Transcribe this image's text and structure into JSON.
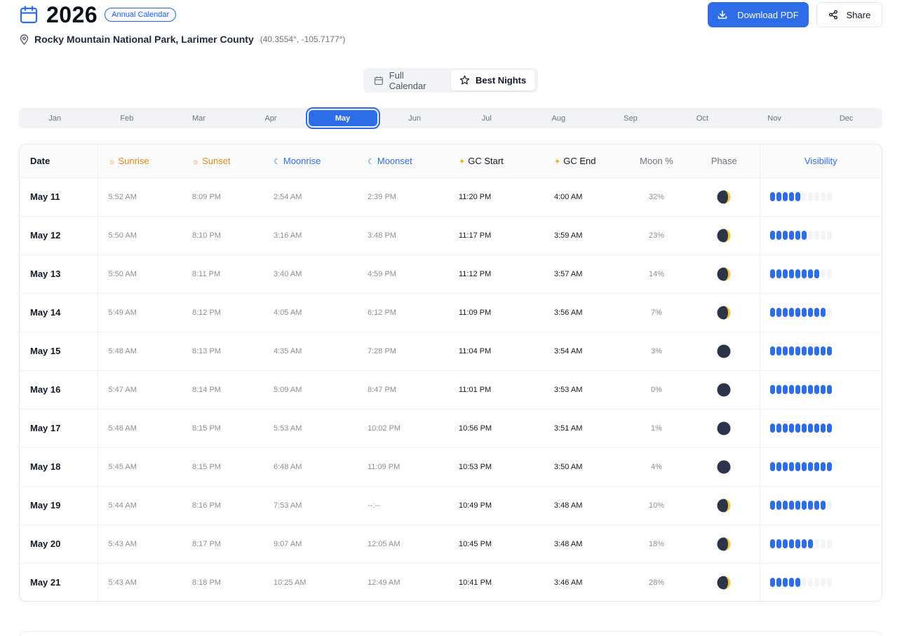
{
  "header": {
    "year": "2026",
    "badge": "Annual Calendar",
    "location_name": "Rocky Mountain National Park, Larimer County",
    "coordinates": "(40.3554°, -105.7177°)",
    "download_label": "Download PDF",
    "share_label": "Share"
  },
  "view_toggle": {
    "full_label": "Full Calendar",
    "best_label": "Best Nights",
    "active": "Best Nights"
  },
  "months": [
    "Jan",
    "Feb",
    "Mar",
    "Apr",
    "May",
    "Jun",
    "Jul",
    "Aug",
    "Sep",
    "Oct",
    "Nov",
    "Dec"
  ],
  "selected_month": "May",
  "table": {
    "headers": {
      "date": "Date",
      "sunrise": "Sunrise",
      "sunset": "Sunset",
      "moonrise": "Moonrise",
      "moonset": "Moonset",
      "gc_start": "GC Start",
      "gc_end": "GC End",
      "moon_pct": "Moon %",
      "phase": "Phase",
      "visibility": "Visibility"
    },
    "rows": [
      {
        "date": "May 11",
        "sunrise": "5:52 AM",
        "sunset": "8:09 PM",
        "moonrise": "2:54 AM",
        "moonset": "2:39 PM",
        "gc_start": "11:20 PM",
        "gc_end": "4:00 AM",
        "moon_pct": "32%",
        "phase": "crescent",
        "visibility": 5
      },
      {
        "date": "May 12",
        "sunrise": "5:50 AM",
        "sunset": "8:10 PM",
        "moonrise": "3:16 AM",
        "moonset": "3:48 PM",
        "gc_start": "11:17 PM",
        "gc_end": "3:59 AM",
        "moon_pct": "23%",
        "phase": "crescent",
        "visibility": 6
      },
      {
        "date": "May 13",
        "sunrise": "5:50 AM",
        "sunset": "8:11 PM",
        "moonrise": "3:40 AM",
        "moonset": "4:59 PM",
        "gc_start": "11:12 PM",
        "gc_end": "3:57 AM",
        "moon_pct": "14%",
        "phase": "crescent",
        "visibility": 8
      },
      {
        "date": "May 14",
        "sunrise": "5:49 AM",
        "sunset": "8:12 PM",
        "moonrise": "4:05 AM",
        "moonset": "6:12 PM",
        "gc_start": "11:09 PM",
        "gc_end": "3:56 AM",
        "moon_pct": "7%",
        "phase": "crescent",
        "visibility": 9
      },
      {
        "date": "May 15",
        "sunrise": "5:48 AM",
        "sunset": "8:13 PM",
        "moonrise": "4:35 AM",
        "moonset": "7:28 PM",
        "gc_start": "11:04 PM",
        "gc_end": "3:54 AM",
        "moon_pct": "3%",
        "phase": "new",
        "visibility": 10
      },
      {
        "date": "May 16",
        "sunrise": "5:47 AM",
        "sunset": "8:14 PM",
        "moonrise": "5:09 AM",
        "moonset": "8:47 PM",
        "gc_start": "11:01 PM",
        "gc_end": "3:53 AM",
        "moon_pct": "0%",
        "phase": "new",
        "visibility": 10
      },
      {
        "date": "May 17",
        "sunrise": "5:46 AM",
        "sunset": "8:15 PM",
        "moonrise": "5:53 AM",
        "moonset": "10:02 PM",
        "gc_start": "10:56 PM",
        "gc_end": "3:51 AM",
        "moon_pct": "1%",
        "phase": "new",
        "visibility": 10
      },
      {
        "date": "May 18",
        "sunrise": "5:45 AM",
        "sunset": "8:15 PM",
        "moonrise": "6:48 AM",
        "moonset": "11:09 PM",
        "gc_start": "10:53 PM",
        "gc_end": "3:50 AM",
        "moon_pct": "4%",
        "phase": "new",
        "visibility": 10
      },
      {
        "date": "May 19",
        "sunrise": "5:44 AM",
        "sunset": "8:16 PM",
        "moonrise": "7:53 AM",
        "moonset": "--:--",
        "gc_start": "10:49 PM",
        "gc_end": "3:48 AM",
        "moon_pct": "10%",
        "phase": "crescent",
        "visibility": 9
      },
      {
        "date": "May 20",
        "sunrise": "5:43 AM",
        "sunset": "8:17 PM",
        "moonrise": "9:07 AM",
        "moonset": "12:05 AM",
        "gc_start": "10:45 PM",
        "gc_end": "3:48 AM",
        "moon_pct": "18%",
        "phase": "crescent",
        "visibility": 7
      },
      {
        "date": "May 21",
        "sunrise": "5:43 AM",
        "sunset": "8:18 PM",
        "moonrise": "10:25 AM",
        "moonset": "12:49 AM",
        "gc_start": "10:41 PM",
        "gc_end": "3:46 AM",
        "moon_pct": "28%",
        "phase": "crescent",
        "visibility": 5
      }
    ],
    "visibility_max": 10
  },
  "icons": {
    "calendar": "calendar-icon",
    "pin": "map-pin-icon",
    "download": "download-icon",
    "share": "share-icon",
    "star": "star-icon",
    "sun": "sun-icon",
    "moon": "moon-icon",
    "sparkles": "sparkles-icon"
  },
  "colors": {
    "accent": "#2e6de8",
    "sun": "#e88a1a",
    "moon_dark": "#2b3448",
    "moon_lit": "#f5c542"
  }
}
